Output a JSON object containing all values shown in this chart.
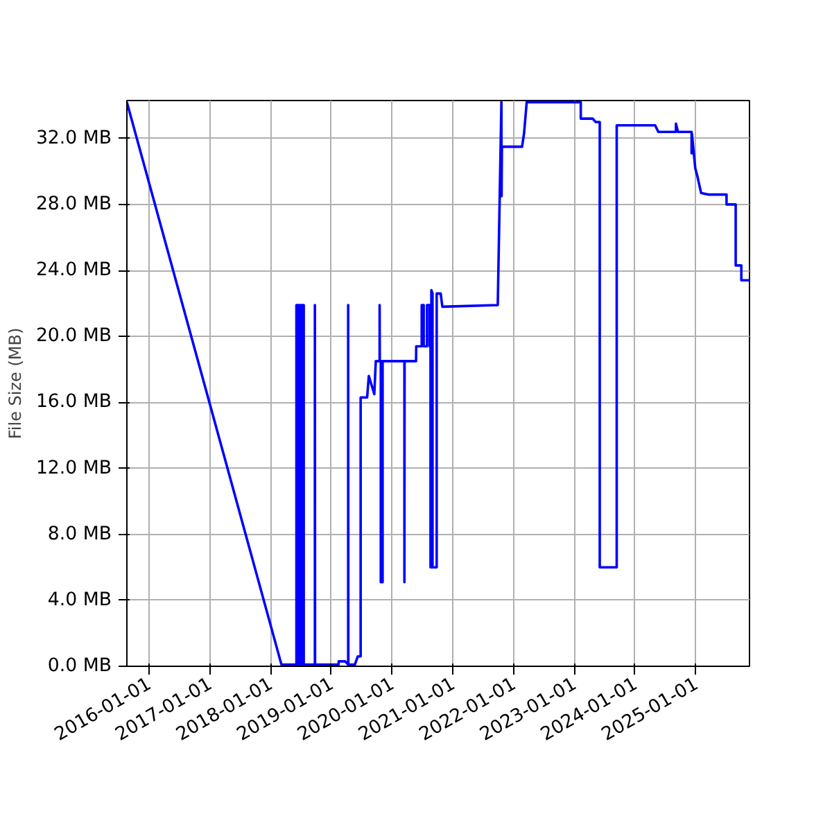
{
  "chart_data": {
    "type": "line",
    "ylabel": "File Size (MB)",
    "x": [
      "2015-08-22",
      "2018-03-08",
      "2018-06-06",
      "2018-06-06",
      "2018-06-08",
      "2018-06-08",
      "2018-06-12",
      "2018-06-12",
      "2018-06-18",
      "2018-06-18",
      "2018-06-25",
      "2018-06-25",
      "2018-07-02",
      "2018-07-02",
      "2018-07-10",
      "2018-07-10",
      "2018-07-20",
      "2018-07-20",
      "2018-09-25",
      "2018-09-25",
      "2018-09-26",
      "2019-02-14",
      "2019-02-15",
      "2019-03-25",
      "2019-04-13",
      "2019-04-13",
      "2019-04-14",
      "2019-05-23",
      "2019-06-10",
      "2019-06-27",
      "2019-06-27",
      "2019-08-05",
      "2019-08-15",
      "2019-09-17",
      "2019-09-26",
      "2019-10-19",
      "2019-10-19",
      "2019-10-20",
      "2019-10-26",
      "2019-10-26",
      "2019-10-29",
      "2019-10-29",
      "2019-11-02",
      "2019-11-02",
      "2019-11-06",
      "2019-11-06",
      "2020-03-16",
      "2020-03-16",
      "2020-03-17",
      "2020-05-25",
      "2020-05-26",
      "2020-06-28",
      "2020-06-28",
      "2020-07-10",
      "2020-07-10",
      "2020-07-30",
      "2020-07-30",
      "2020-08-15",
      "2020-08-15",
      "2020-08-20",
      "2020-08-20",
      "2020-08-25",
      "2020-08-25",
      "2020-09-01",
      "2020-09-01",
      "2020-09-26",
      "2020-09-26",
      "2020-10-20",
      "2020-10-30",
      "2021-09-28",
      "2021-10-20",
      "2021-10-21",
      "2021-10-23",
      "2022-02-21",
      "2022-03-05",
      "2022-03-21",
      "2023-02-09",
      "2023-02-09",
      "2023-04-22",
      "2023-05-10",
      "2023-06-03",
      "2023-06-03",
      "2023-09-13",
      "2023-09-13",
      "2024-05-01",
      "2024-05-20",
      "2024-09-03",
      "2024-09-03",
      "2024-09-15",
      "2024-12-06",
      "2024-12-06",
      "2024-12-08",
      "2024-12-28",
      "2025-01-10",
      "2025-02-01",
      "2025-03-15",
      "2025-07-04",
      "2025-07-04",
      "2025-08-28",
      "2025-08-28",
      "2025-10-01",
      "2025-10-01",
      "2025-11-19"
    ],
    "series": [
      {
        "color": "#0000ff",
        "values": [
          34.2,
          0.1,
          0.1,
          21.9,
          21.9,
          0.1,
          0.1,
          21.9,
          21.9,
          0.1,
          0.1,
          21.9,
          21.9,
          0.1,
          0.1,
          21.9,
          21.9,
          0.1,
          0.1,
          21.9,
          0.1,
          0.1,
          0.3,
          0.3,
          0.1,
          21.9,
          0.1,
          0.1,
          0.6,
          0.6,
          16.3,
          16.3,
          17.6,
          16.5,
          18.5,
          18.5,
          21.9,
          18.5,
          18.5,
          5.1,
          5.1,
          18.5,
          18.5,
          5.1,
          5.1,
          18.5,
          18.5,
          5.1,
          18.5,
          18.5,
          19.4,
          19.4,
          21.9,
          21.9,
          19.4,
          19.4,
          21.9,
          21.9,
          19.4,
          19.4,
          6.0,
          6.0,
          22.8,
          22.6,
          6.0,
          6.0,
          22.6,
          22.6,
          21.8,
          21.9,
          34.2,
          28.5,
          31.5,
          31.5,
          32.3,
          34.2,
          34.2,
          33.2,
          33.2,
          33.0,
          33.0,
          6.0,
          6.0,
          32.8,
          32.8,
          32.4,
          32.4,
          32.9,
          32.4,
          32.4,
          31.1,
          32.3,
          30.2,
          29.7,
          28.7,
          28.6,
          28.6,
          28.0,
          28.0,
          24.3,
          24.3,
          23.4,
          23.4
        ]
      }
    ],
    "xlim": [
      "2015-08-22",
      "2025-11-19"
    ],
    "xticks": [
      "2016-01-01",
      "2017-01-01",
      "2018-01-01",
      "2019-01-01",
      "2020-01-01",
      "2021-01-01",
      "2022-01-01",
      "2023-01-01",
      "2024-01-01",
      "2025-01-01"
    ],
    "ylim": [
      0,
      34.3
    ],
    "yticks": [
      {
        "value": 0,
        "label": "0.0 MB"
      },
      {
        "value": 4,
        "label": "4.0 MB"
      },
      {
        "value": 8,
        "label": "8.0 MB"
      },
      {
        "value": 12,
        "label": "12.0 MB"
      },
      {
        "value": 16,
        "label": "16.0 MB"
      },
      {
        "value": 20,
        "label": "20.0 MB"
      },
      {
        "value": 24,
        "label": "24.0 MB"
      },
      {
        "value": 28,
        "label": "28.0 MB"
      },
      {
        "value": 32,
        "label": "32.0 MB"
      }
    ],
    "grid": true
  }
}
